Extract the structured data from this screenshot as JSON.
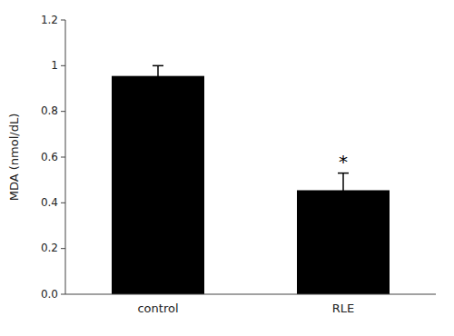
{
  "chart_data": {
    "type": "bar",
    "categories": [
      "control",
      "RLE"
    ],
    "values": [
      0.955,
      0.455
    ],
    "errors": [
      0.045,
      0.075
    ],
    "color": "#000000",
    "ylabel": "MDA (nmol/dL)",
    "ylim": [
      0,
      1.2
    ],
    "yticks": [
      {
        "value": 0,
        "label": "0.0"
      },
      0.2,
      0.4,
      0.6,
      0.8,
      1,
      1.2
    ],
    "annotations": [
      {
        "text": "*",
        "x": "RLE"
      }
    ],
    "grid": false
  }
}
